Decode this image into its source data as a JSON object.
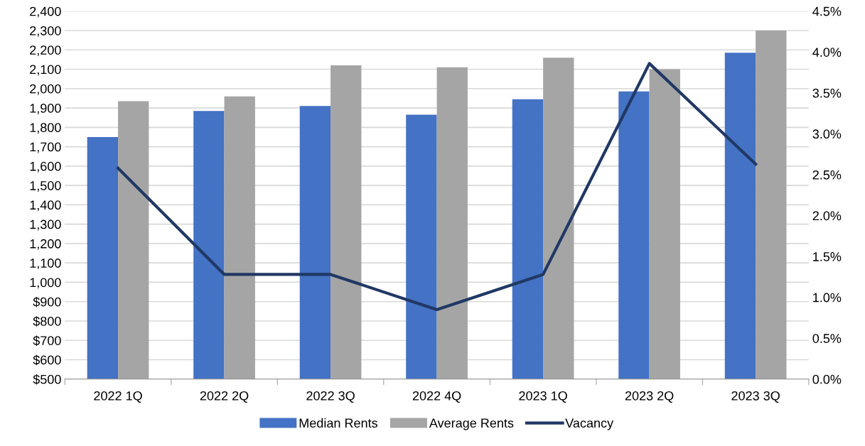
{
  "chart_data": {
    "type": "bar",
    "categories": [
      "2022 1Q",
      "2022 2Q",
      "2022 3Q",
      "2022 4Q",
      "2023 1Q",
      "2023 2Q",
      "2023 3Q"
    ],
    "series": [
      {
        "name": "Median Rents",
        "color": "#4472c4",
        "values": [
          1750,
          1885,
          1910,
          1865,
          1945,
          1985,
          2185
        ]
      },
      {
        "name": "Average Rents",
        "color": "#a5a5a5",
        "values": [
          1935,
          1960,
          2120,
          2110,
          2160,
          2100,
          2300
        ]
      },
      {
        "name": "Vacancy",
        "type": "line",
        "axis": "y2",
        "color": "#203864",
        "values": [
          2.58,
          1.28,
          1.28,
          0.85,
          1.28,
          3.86,
          2.63
        ]
      }
    ],
    "ylim": [
      500,
      2400
    ],
    "yticks": [
      {
        "value": 500,
        "label": "$500"
      },
      {
        "value": 600,
        "label": "$600"
      },
      {
        "value": 700,
        "label": "$700"
      },
      {
        "value": 800,
        "label": "$800"
      },
      {
        "value": 900,
        "label": "$900"
      },
      {
        "value": 1000,
        "label": "1,000"
      },
      {
        "value": 1100,
        "label": "1,100"
      },
      {
        "value": 1200,
        "label": "1,200"
      },
      {
        "value": 1300,
        "label": "1,300"
      },
      {
        "value": 1400,
        "label": "1,400"
      },
      {
        "value": 1500,
        "label": "1,500"
      },
      {
        "value": 1600,
        "label": "1,600"
      },
      {
        "value": 1700,
        "label": "1,700"
      },
      {
        "value": 1800,
        "label": "1,800"
      },
      {
        "value": 1900,
        "label": "1,900"
      },
      {
        "value": 2000,
        "label": "2,000"
      },
      {
        "value": 2100,
        "label": "2,100"
      },
      {
        "value": 2200,
        "label": "2,200"
      },
      {
        "value": 2300,
        "label": "2,300"
      },
      {
        "value": 2400,
        "label": "2,400"
      }
    ],
    "y2lim": [
      0,
      4.5
    ],
    "y2ticks": [
      {
        "value": 0,
        "label": "0.0%"
      },
      {
        "value": 0.5,
        "label": "0.5%"
      },
      {
        "value": 1,
        "label": "1.0%"
      },
      {
        "value": 1.5,
        "label": "1.5%"
      },
      {
        "value": 2,
        "label": "2.0%"
      },
      {
        "value": 2.5,
        "label": "2.5%"
      },
      {
        "value": 3,
        "label": "3.0%"
      },
      {
        "value": 3.5,
        "label": "3.5%"
      },
      {
        "value": 4,
        "label": "4.0%"
      },
      {
        "value": 4.5,
        "label": "4.5%"
      }
    ],
    "grid": "y",
    "legend": "bottom",
    "marker": "none",
    "line_style": "solid"
  }
}
